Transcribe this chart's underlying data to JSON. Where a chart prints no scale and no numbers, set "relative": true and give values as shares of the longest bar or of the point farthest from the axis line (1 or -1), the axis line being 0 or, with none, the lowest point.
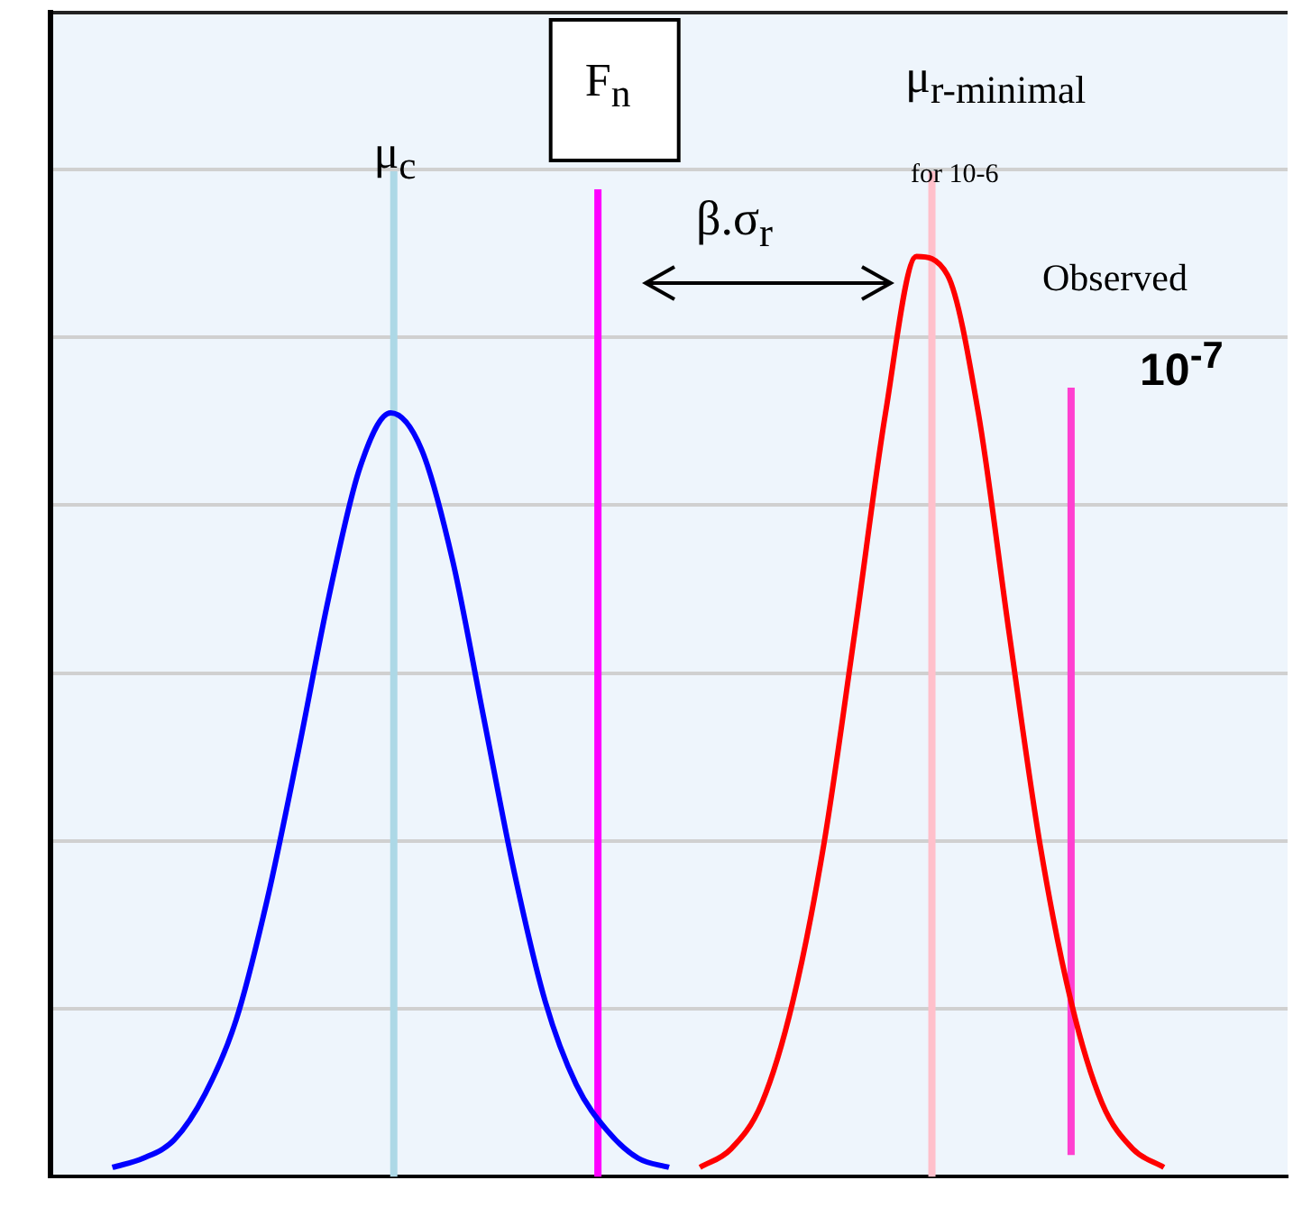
{
  "chart_data": {
    "type": "line",
    "relative": true,
    "categories": [
      null,
      null,
      null,
      null,
      null,
      null,
      null,
      null,
      null,
      null,
      null,
      null,
      null,
      null,
      null,
      null,
      null,
      null,
      null,
      null,
      null,
      null,
      null,
      null,
      null,
      null,
      null,
      null,
      null,
      null,
      null,
      null,
      null,
      null,
      null,
      null,
      null,
      null,
      null,
      null,
      null
    ],
    "series": [
      {
        "color": "#0000ff",
        "values": [
          null,
          null,
          0.01,
          0.02,
          0.04,
          0.09,
          0.17,
          0.3,
          0.46,
          0.63,
          0.77,
          0.83,
          0.79,
          0.67,
          0.5,
          0.33,
          0.19,
          0.1,
          0.05,
          0.02,
          0.01,
          null,
          null,
          null,
          null,
          null,
          null,
          null,
          null,
          null,
          null,
          null,
          null,
          null,
          null,
          null,
          null,
          null,
          null,
          null,
          null
        ]
      },
      {
        "color": "#ff0000",
        "values": [
          null,
          null,
          null,
          null,
          null,
          null,
          null,
          null,
          null,
          null,
          null,
          null,
          null,
          null,
          null,
          null,
          null,
          null,
          null,
          null,
          null,
          0.01,
          0.03,
          0.08,
          0.19,
          0.36,
          0.59,
          0.83,
          1.0,
          0.98,
          0.83,
          0.59,
          0.36,
          0.19,
          0.08,
          0.03,
          0.01,
          null,
          null,
          null,
          null
        ]
      }
    ],
    "annotations": [
      "μ$_{c}$",
      "F$_{n}$",
      "μ$_{r-minimal}$",
      "for 10-6",
      "β.σ$_{r}$",
      "Observed",
      "10$^{-7}$"
    ],
    "grid": "y",
    "legend": false,
    "marker": "none",
    "line_style": "solid"
  }
}
